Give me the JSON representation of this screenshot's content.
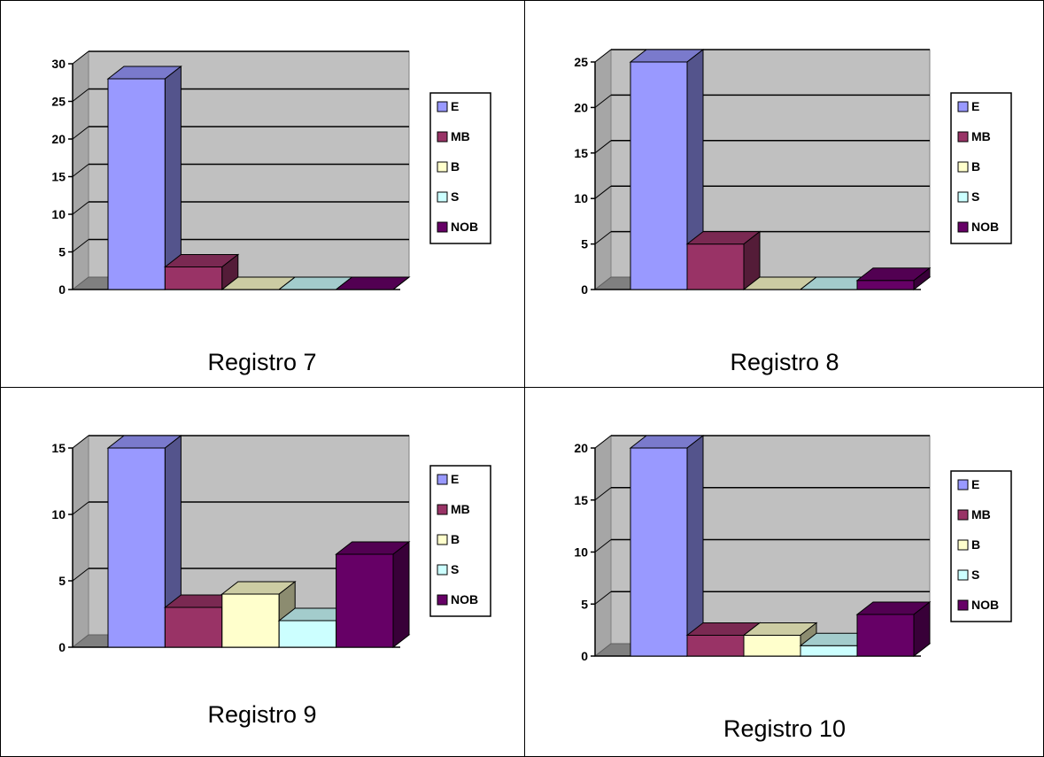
{
  "legend": {
    "labels": [
      "E",
      "MB",
      "B",
      "S",
      "NOB"
    ],
    "colors": [
      "#9999ff",
      "#993366",
      "#ffffcc",
      "#ccffff",
      "#660066"
    ]
  },
  "colors": {
    "wall": "#c0c0c0",
    "floor": "#808080",
    "gridline": "#000000",
    "axis": "#000000"
  },
  "panels": [
    {
      "caption": "Registro 7"
    },
    {
      "caption": "Registro 8"
    },
    {
      "caption": "Registro 9"
    },
    {
      "caption": "Registro 10"
    }
  ],
  "chart_data": [
    {
      "type": "bar",
      "title": "Registro 7",
      "categories": [
        "E",
        "MB",
        "B",
        "S",
        "NOB"
      ],
      "series": [
        {
          "values": [
            28,
            3,
            0,
            0,
            0
          ]
        }
      ],
      "ylim": [
        0,
        30
      ],
      "yticks": [
        0,
        5,
        10,
        15,
        20,
        25,
        30
      ],
      "grid": true,
      "legend_position": "right"
    },
    {
      "type": "bar",
      "title": "Registro 8",
      "categories": [
        "E",
        "MB",
        "B",
        "S",
        "NOB"
      ],
      "series": [
        {
          "values": [
            25,
            5,
            0,
            0,
            1
          ]
        }
      ],
      "ylim": [
        0,
        25
      ],
      "yticks": [
        0,
        5,
        10,
        15,
        20,
        25
      ],
      "grid": true,
      "legend_position": "right"
    },
    {
      "type": "bar",
      "title": "Registro 9",
      "categories": [
        "E",
        "MB",
        "B",
        "S",
        "NOB"
      ],
      "series": [
        {
          "values": [
            15,
            3,
            4,
            2,
            7
          ]
        }
      ],
      "ylim": [
        0,
        15
      ],
      "yticks": [
        0,
        5,
        10,
        15
      ],
      "grid": true,
      "legend_position": "right"
    },
    {
      "type": "bar",
      "title": "Registro 10",
      "categories": [
        "E",
        "MB",
        "B",
        "S",
        "NOB"
      ],
      "series": [
        {
          "values": [
            20,
            2,
            2,
            1,
            4
          ]
        }
      ],
      "ylim": [
        0,
        20
      ],
      "yticks": [
        0,
        5,
        10,
        15,
        20
      ],
      "grid": true,
      "legend_position": "right"
    }
  ]
}
